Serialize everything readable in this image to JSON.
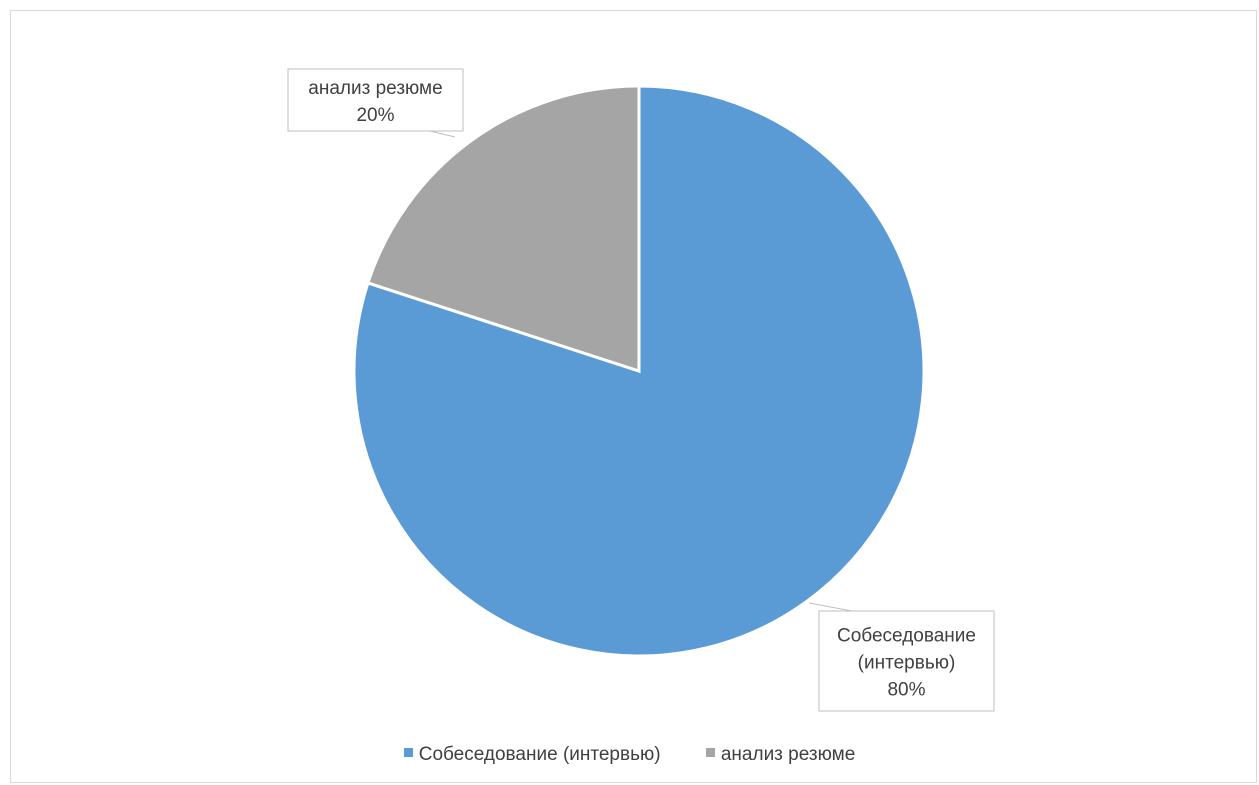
{
  "chart_data": {
    "type": "pie",
    "slices": [
      {
        "name": "Собеседование (интервью)",
        "value": 80,
        "color": "#5B9BD5",
        "label_lines": [
          "Собеседование",
          "(интервью)"
        ],
        "pct_text": "80%"
      },
      {
        "name": "анализ резюме",
        "value": 20,
        "color": "#A5A5A5",
        "label_lines": [
          "анализ резюме"
        ],
        "pct_text": "20%"
      }
    ],
    "legend_position": "bottom"
  },
  "legend": {
    "items": [
      {
        "label": "Собеседование (интервью)",
        "color": "#5B9BD5"
      },
      {
        "label": "анализ резюме",
        "color": "#A5A5A5"
      }
    ]
  }
}
